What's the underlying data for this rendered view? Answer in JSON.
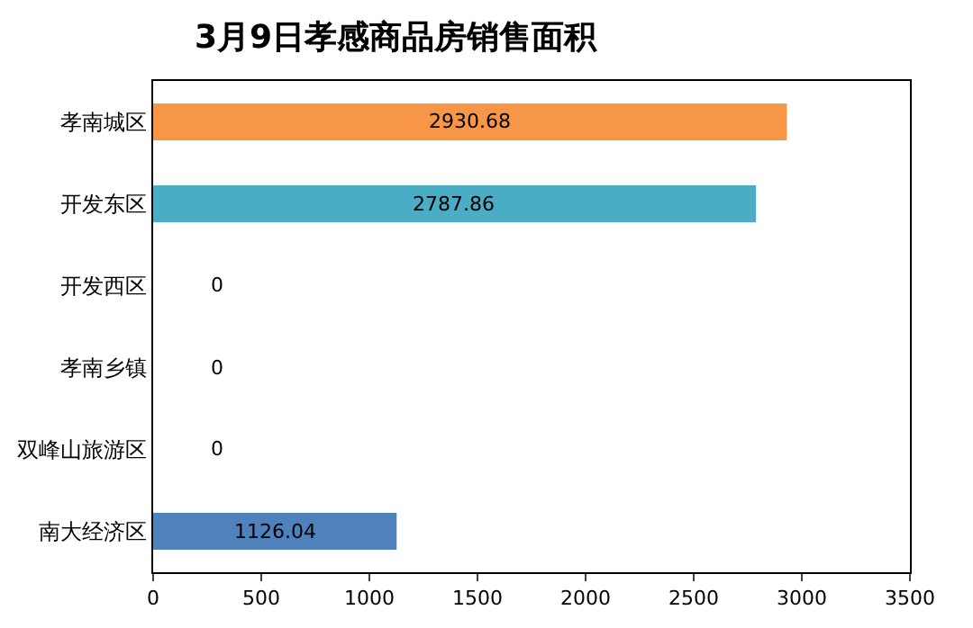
{
  "chart_data": {
    "type": "bar",
    "orientation": "horizontal",
    "title": "3月9日孝感商品房销售面积",
    "categories": [
      "孝南城区",
      "开发东区",
      "开发西区",
      "孝南乡镇",
      "双峰山旅游区",
      "南大经济区"
    ],
    "values": [
      2930.68,
      2787.86,
      0,
      0,
      0,
      1126.04
    ],
    "colors": [
      "#f79646",
      "#4bacc6",
      null,
      null,
      null,
      "#4f81bd"
    ],
    "value_labels": [
      "2930.68",
      "2787.86",
      "0",
      "0",
      "0",
      "1126.04"
    ],
    "xlim": [
      0,
      3500
    ],
    "xticks": [
      0,
      500,
      1000,
      1500,
      2000,
      2500,
      3000,
      3500
    ]
  }
}
